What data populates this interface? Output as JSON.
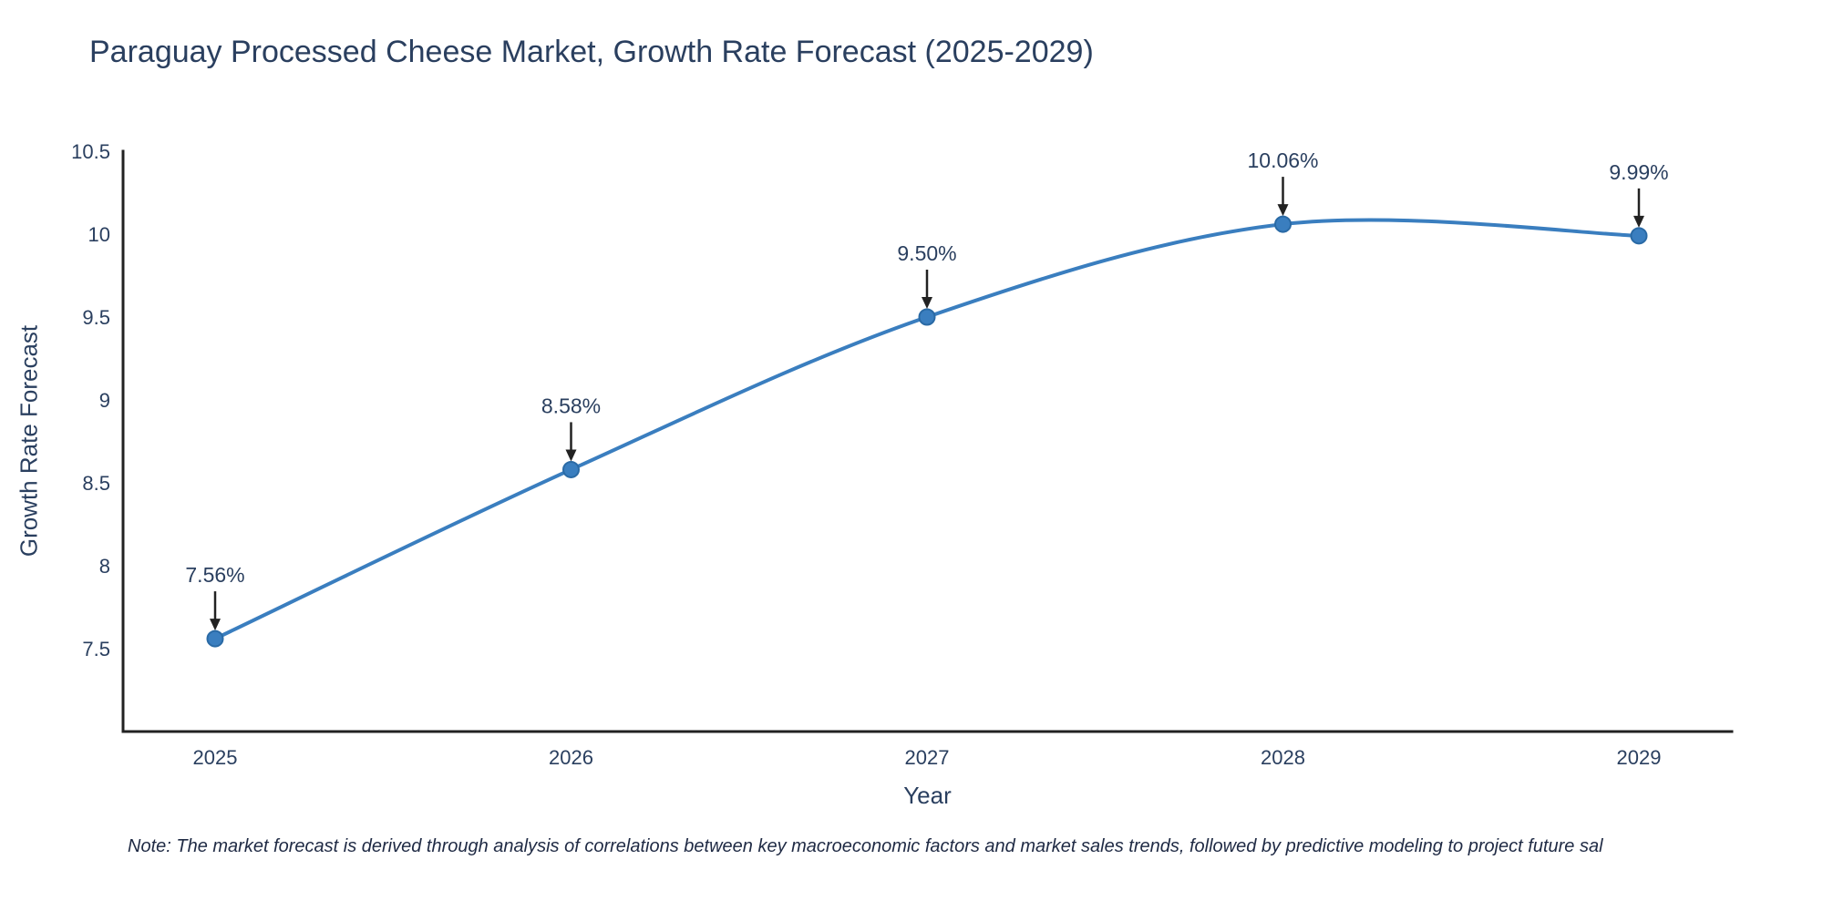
{
  "note": "Note: The market forecast is derived through analysis of correlations between key macroeconomic factors and market sales trends, followed by predictive modeling to project future sal",
  "colors": {
    "title_text": "#2a3f5f",
    "tick_text": "#2a3f5f",
    "axis_line": "#222222",
    "line": "#3a7ebf",
    "marker_fill": "#3a7ebf",
    "marker_stroke": "#2a6aa5",
    "annotation_text": "#2a3f5f",
    "annotation_arrow": "#222222",
    "note_text": "#1f2a44"
  },
  "chart_data": {
    "type": "line",
    "title": "Paraguay Processed Cheese Market, Growth Rate Forecast (2025-2029)",
    "xlabel": "Year",
    "ylabel": "Growth Rate Forecast",
    "x": [
      2025,
      2026,
      2027,
      2028,
      2029
    ],
    "x_tick_labels": [
      "2025",
      "2026",
      "2027",
      "2028",
      "2029"
    ],
    "values": [
      7.56,
      8.58,
      9.5,
      10.06,
      9.99
    ],
    "point_labels": [
      "7.56%",
      "8.58%",
      "9.50%",
      "10.06%",
      "9.99%"
    ],
    "ylim": [
      7.0,
      10.5
    ],
    "yticks": [
      7.5,
      8,
      8.5,
      9,
      9.5,
      10,
      10.5
    ],
    "ytick_labels": [
      "7.5",
      "8",
      "8.5",
      "9",
      "9.5",
      "10",
      "10.5"
    ],
    "grid": false,
    "legend": "none",
    "line_shape": "spline",
    "annotations": "arrow-down-to-point"
  }
}
